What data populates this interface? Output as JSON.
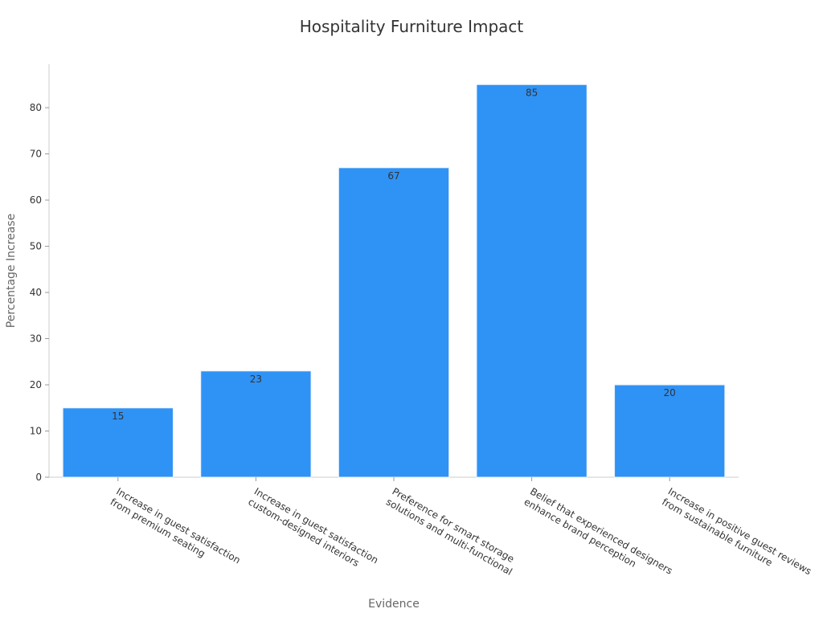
{
  "chart_data": {
    "type": "bar",
    "title": "Hospitality Furniture Impact",
    "x_label": "Evidence",
    "y_label": "Percentage Increase",
    "categories": [
      "Increase in guest satisfaction\nfrom premium seating",
      "Increase in guest satisfaction\ncustom-designed interiors",
      "Preference for smart storage\nsolutions and multi-functional",
      "Belief that experienced designers\nenhance brand perception",
      "Increase in positive guest reviews\nfrom sustainable furniture"
    ],
    "values": [
      15,
      23,
      67,
      85,
      20
    ],
    "color": "#2f92f5",
    "ylim": [
      0,
      89.4
    ],
    "yticks": [
      0,
      10,
      20,
      30,
      40,
      50,
      60,
      70,
      80
    ],
    "grid": false
  }
}
